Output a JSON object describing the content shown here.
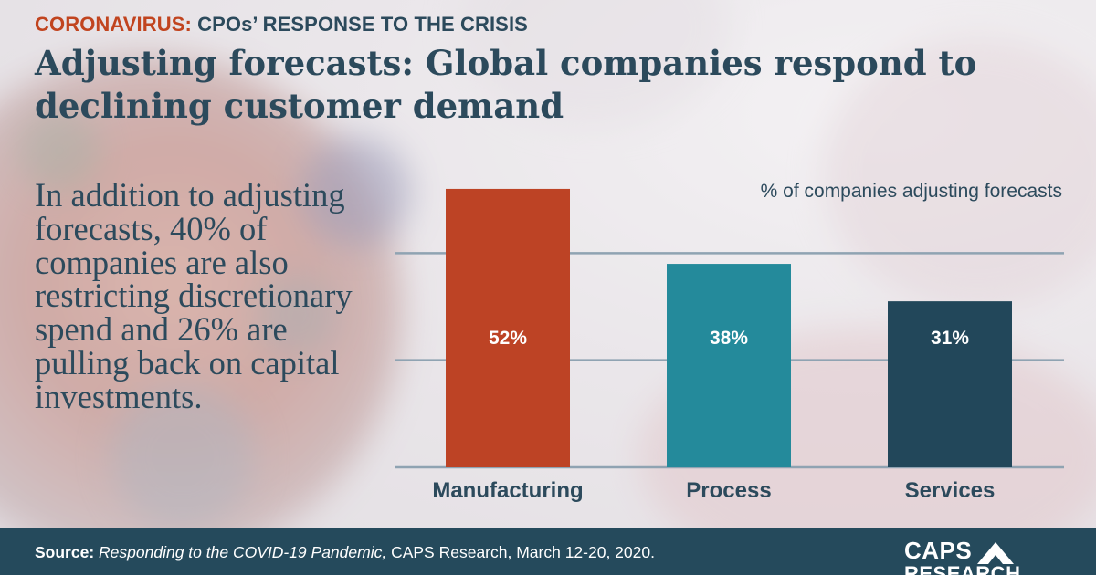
{
  "header": {
    "kicker_accent": "CORONAVIRUS:",
    "kicker_rest": "CPOs’ RESPONSE TO THE CRISIS",
    "headline": "Adjusting forecasts: Global companies respond to declining customer demand"
  },
  "body": {
    "text": "In addition to adjusting forecasts, 40% of companies are also restricting discretionary spend and 26% are pulling back on capital investments."
  },
  "colors": {
    "accent": "#c1441f",
    "navy": "#2c4a5c",
    "manufacturing": "#bd4325",
    "process": "#248a9b",
    "services": "#22475a",
    "gridline": "#8fa3b2",
    "footer": "#254a5c"
  },
  "chart_data": {
    "type": "bar",
    "title": "% of companies adjusting forecasts",
    "categories": [
      "Manufacturing",
      "Process",
      "Services"
    ],
    "values": [
      52,
      38,
      31
    ],
    "value_labels": [
      "52%",
      "38%",
      "31%"
    ],
    "ylim": [
      0,
      60
    ],
    "grid": true,
    "bar_colors": [
      "#bd4325",
      "#248a9b",
      "#22475a"
    ]
  },
  "footer": {
    "source_label": "Source:",
    "source_title": "Responding to the COVID-19 Pandemic,",
    "source_rest": "CAPS Research, March 12-20, 2020.",
    "logo_line1": "CAPS",
    "logo_line2": "RESEARCH"
  }
}
